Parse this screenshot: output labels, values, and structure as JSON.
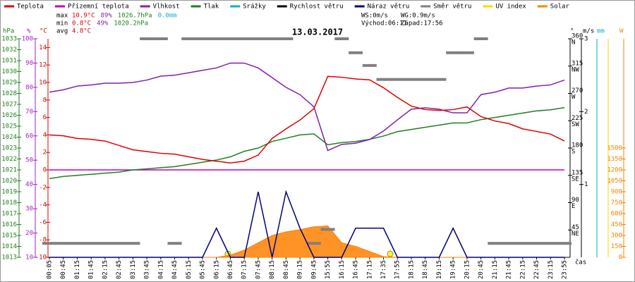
{
  "chart_data": {
    "type": "line",
    "title": "13.03.2017",
    "x_axis_label": "čas",
    "categories": [
      "00:05",
      "00:45",
      "01:15",
      "01:45",
      "02:15",
      "02:45",
      "03:15",
      "03:45",
      "04:15",
      "04:45",
      "05:15",
      "05:45",
      "06:15",
      "06:45",
      "07:15",
      "07:45",
      "08:15",
      "08:45",
      "09:15",
      "09:45",
      "15:55",
      "16:15",
      "16:45",
      "17:15",
      "17:35",
      "17:55",
      "18:15",
      "18:45",
      "19:15",
      "19:45",
      "20:15",
      "20:45",
      "21:15",
      "21:45",
      "22:15",
      "22:45",
      "23:15",
      "23:55"
    ],
    "axes": {
      "p": {
        "unit": "hPa",
        "color": "#208020",
        "ylim": [
          1013,
          1033
        ],
        "yticks": [
          1013,
          1014,
          1015,
          1016,
          1017,
          1018,
          1019,
          1020,
          1021,
          1022,
          1023,
          1024,
          1025,
          1026,
          1027,
          1028,
          1029,
          1030,
          1031,
          1032,
          1033
        ]
      },
      "h": {
        "unit": "%",
        "color": "#a020c0",
        "ylim": [
          10,
          100
        ],
        "yticks": [
          10,
          20,
          30,
          40,
          50,
          60,
          70,
          80,
          90,
          100
        ]
      },
      "t": {
        "unit": "°C",
        "color": "#e00000",
        "ylim": [
          -10,
          15
        ],
        "yticks": [
          -10,
          -8,
          -6,
          -4,
          -2,
          0,
          2,
          4,
          6,
          8,
          10,
          12,
          14
        ]
      },
      "d": {
        "unit": "°",
        "color": "#000000",
        "ylim": [
          0,
          360
        ],
        "yticks": [
          45,
          90,
          135,
          180,
          225,
          270,
          315,
          360
        ],
        "tick_names": [
          "NE",
          "E",
          "SE",
          "S",
          "SW",
          "W",
          "NW",
          "N"
        ]
      },
      "w": {
        "unit": "m/s",
        "color": "#000000",
        "ylim": [
          0,
          3
        ],
        "yticks": [
          1,
          2,
          3
        ]
      },
      "r": {
        "unit": "mm",
        "color": "#00b0d0"
      },
      "s": {
        "unit": "W",
        "color": "#ff8000",
        "ylim": [
          0,
          3000
        ],
        "yticks": [
          0,
          150,
          300,
          450,
          600,
          750,
          900,
          1050,
          1200,
          1350,
          1500
        ]
      }
    },
    "series": [
      {
        "name": "Teplota",
        "color": "#e00000",
        "axis": "t",
        "values": [
          4.0,
          3.9,
          3.6,
          3.5,
          3.3,
          2.8,
          2.3,
          2.1,
          1.9,
          1.8,
          1.5,
          1.2,
          1.0,
          0.8,
          1.0,
          1.7,
          3.6,
          4.7,
          5.7,
          7.0,
          10.7,
          10.6,
          10.4,
          10.3,
          9.4,
          8.3,
          7.3,
          6.9,
          6.8,
          6.9,
          7.2,
          6.1,
          5.6,
          5.3,
          4.7,
          4.4,
          4.1,
          3.3
        ]
      },
      {
        "name": "Přízemní teplota",
        "color": "#c000c0",
        "axis": "t",
        "values": [
          0,
          0,
          0,
          0,
          0,
          0,
          0,
          0,
          0,
          0,
          0,
          0,
          0,
          0,
          0,
          0,
          0,
          0,
          0,
          0,
          0,
          0,
          0,
          0,
          0,
          0,
          0,
          0,
          0,
          0,
          0,
          0,
          0,
          0,
          0,
          0,
          0,
          0
        ]
      },
      {
        "name": "Vlhkost",
        "color": "#8020b0",
        "axis": "h",
        "values": [
          78,
          79,
          80.5,
          81,
          81.7,
          81.7,
          82,
          83,
          84.6,
          85,
          86,
          87,
          88,
          90,
          90,
          88,
          84,
          80,
          77,
          72,
          54,
          56.5,
          57,
          58.5,
          62,
          66.6,
          71,
          71.6,
          71,
          69.5,
          69.5,
          77,
          78,
          79.7,
          79.7,
          80.5,
          81,
          83
        ]
      },
      {
        "name": "Tlak",
        "color": "#208020",
        "axis": "p",
        "values": [
          1020.2,
          1020.4,
          1020.5,
          1020.6,
          1020.7,
          1020.8,
          1021.0,
          1021.1,
          1021.2,
          1021.3,
          1021.5,
          1021.7,
          1021.9,
          1022.2,
          1022.7,
          1023.0,
          1023.6,
          1023.9,
          1024.2,
          1024.3,
          1023.3,
          1023.5,
          1023.6,
          1023.8,
          1024.1,
          1024.5,
          1024.7,
          1024.9,
          1025.1,
          1025.3,
          1025.3,
          1025.6,
          1025.8,
          1026.0,
          1026.2,
          1026.4,
          1026.5,
          1026.7
        ]
      },
      {
        "name": "Srážky",
        "color": "#00b0d0",
        "axis": "r"
      },
      {
        "name": "Rychlost větru",
        "color": "#000000",
        "axis": "w"
      },
      {
        "name": "Náraz větru",
        "color": "#000080",
        "axis": "w",
        "values": [
          0,
          0,
          0,
          0,
          0,
          0,
          0,
          0,
          0,
          0,
          0,
          0,
          0.4,
          0,
          0,
          0.9,
          0,
          0.9,
          0.4,
          0,
          0,
          0,
          0.4,
          0.4,
          0.4,
          0,
          0,
          0,
          0,
          0.4,
          0,
          0,
          0,
          0,
          0,
          0,
          0,
          0
        ]
      },
      {
        "name": "Směr větru",
        "color": "#808080",
        "axis": "d",
        "kind": "dash",
        "values": [
          23,
          23,
          23,
          23,
          23,
          23,
          23,
          360,
          360,
          23,
          360,
          360,
          360,
          360,
          360,
          360,
          360,
          360,
          null,
          23,
          46,
          360,
          337,
          316,
          293,
          293,
          293,
          293,
          293,
          337,
          337,
          360,
          23,
          23,
          23,
          23,
          23,
          23
        ]
      },
      {
        "name": "UV index",
        "color": "#ffd700"
      },
      {
        "name": "Solar",
        "color": "#ff8000",
        "axis": "s",
        "kind": "area",
        "values": [
          0,
          0,
          0,
          0,
          0,
          0,
          0,
          0,
          0,
          0,
          0,
          0,
          0,
          30,
          100,
          200,
          300,
          350,
          380,
          420,
          430,
          200,
          150,
          80,
          10,
          0,
          0,
          0,
          0,
          0,
          0,
          0,
          0,
          0,
          0,
          0,
          0,
          0
        ]
      }
    ],
    "stats": [
      {
        "label": "max",
        "values": [
          "10.9°C",
          "89%",
          "1026.7hPa",
          "0.0mm"
        ]
      },
      {
        "label": "min",
        "values": [
          "0.8°C",
          "49%",
          "1020.2hPa"
        ]
      },
      {
        "label": "avg",
        "values": [
          "4.8°C"
        ]
      }
    ],
    "wind": {
      "ws": "WS:0m/s",
      "wg": "WG:0.9m/s"
    },
    "sun": {
      "rise": "Východ:06:11",
      "set": "Západ:17:56"
    }
  }
}
